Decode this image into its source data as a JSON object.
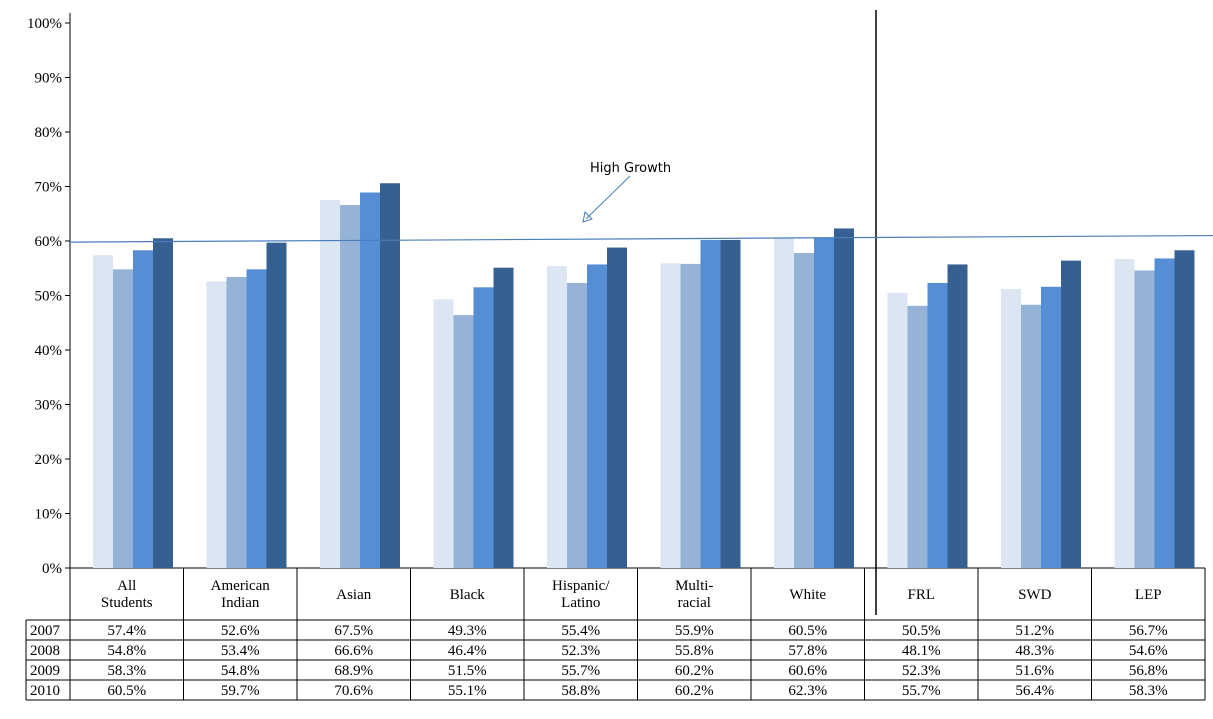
{
  "chart_data": {
    "type": "bar",
    "categories": [
      [
        "All",
        "Students"
      ],
      [
        "American",
        "Indian"
      ],
      [
        "Asian"
      ],
      [
        "Black"
      ],
      [
        "Hispanic/",
        "Latino"
      ],
      [
        "Multi-",
        "racial"
      ],
      [
        "White"
      ],
      [
        "FRL"
      ],
      [
        "SWD"
      ],
      [
        "LEP"
      ]
    ],
    "series": [
      {
        "name": "2007",
        "color": "#dce6f2",
        "values": [
          57.4,
          52.6,
          67.5,
          49.3,
          55.4,
          55.9,
          60.5,
          50.5,
          51.2,
          56.7
        ],
        "labels": [
          "57.4%",
          "52.6%",
          "67.5%",
          "49.3%",
          "55.4%",
          "55.9%",
          "60.5%",
          "50.5%",
          "51.2%",
          "56.7%"
        ]
      },
      {
        "name": "2008",
        "color": "#95b3d7",
        "values": [
          54.8,
          53.4,
          66.6,
          46.4,
          52.3,
          55.8,
          57.8,
          48.1,
          48.3,
          54.6
        ],
        "labels": [
          "54.8%",
          "53.4%",
          "66.6%",
          "46.4%",
          "52.3%",
          "55.8%",
          "57.8%",
          "48.1%",
          "48.3%",
          "54.6%"
        ]
      },
      {
        "name": "2009",
        "color": "#558ed5",
        "values": [
          58.3,
          54.8,
          68.9,
          51.5,
          55.7,
          60.2,
          60.6,
          52.3,
          51.6,
          56.8
        ],
        "labels": [
          "58.3%",
          "54.8%",
          "68.9%",
          "51.5%",
          "55.7%",
          "60.2%",
          "60.6%",
          "52.3%",
          "51.6%",
          "56.8%"
        ]
      },
      {
        "name": "2010",
        "color": "#376092",
        "values": [
          60.5,
          59.7,
          70.6,
          55.1,
          58.8,
          60.2,
          62.3,
          55.7,
          56.4,
          58.3
        ],
        "labels": [
          "60.5%",
          "59.7%",
          "70.6%",
          "55.1%",
          "58.8%",
          "60.2%",
          "62.3%",
          "55.7%",
          "56.4%",
          "58.3%"
        ]
      }
    ],
    "ylim": [
      0,
      100
    ],
    "yticks": [
      "0%",
      "10%",
      "20%",
      "30%",
      "40%",
      "50%",
      "60%",
      "70%",
      "80%",
      "90%",
      "100%"
    ],
    "grid": false,
    "legend": "data table below chart",
    "reference_line": {
      "label": "High Growth",
      "y_start": 59.8,
      "y_end": 61.0,
      "color": "#4a7ebb"
    },
    "divider_after_category": 6
  }
}
